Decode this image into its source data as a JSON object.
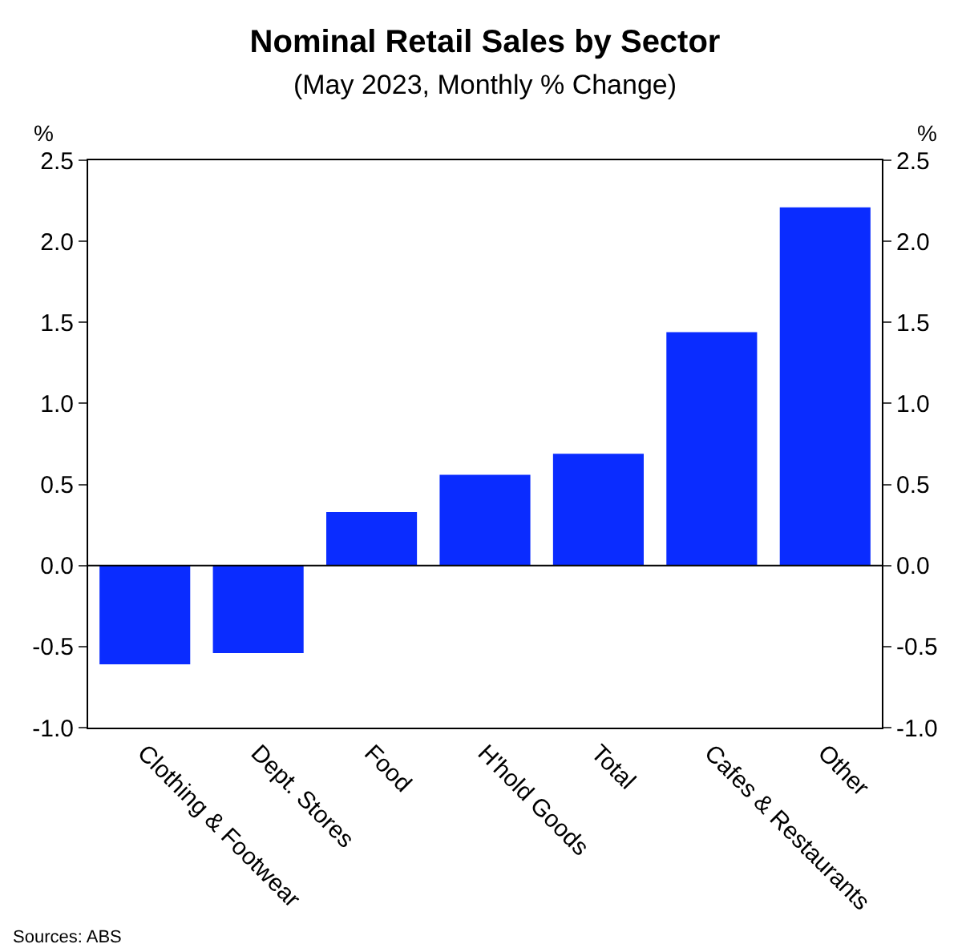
{
  "chart_data": {
    "type": "bar",
    "title": "Nominal Retail Sales by Sector",
    "subtitle": "(May 2023, Monthly % Change)",
    "categories": [
      "Clothing & Footwear",
      "Dept. Stores",
      "Food",
      "H'hold Goods",
      "Total",
      "Cafes & Restaurants",
      "Other"
    ],
    "values": [
      -0.61,
      -0.54,
      0.33,
      0.56,
      0.69,
      1.44,
      2.21
    ],
    "color": "#0a2cff",
    "ylabel": "%",
    "y2label": "%",
    "ylim": [
      -1.0,
      2.5
    ],
    "yticks": [
      {
        "value": -1.0,
        "label": "-1.0"
      },
      {
        "value": -0.5,
        "label": "-0.5"
      },
      {
        "value": 0.0,
        "label": "0.0"
      },
      {
        "value": 0.5,
        "label": "0.5"
      },
      {
        "value": 1.0,
        "label": "1.0"
      },
      {
        "value": 1.5,
        "label": "1.5"
      },
      {
        "value": 2.0,
        "label": "2.0"
      },
      {
        "value": 2.5,
        "label": "2.5"
      }
    ],
    "y2lim": [
      -1.0,
      2.5
    ],
    "y2ticks": [
      {
        "value": -1.0,
        "label": "-1.0"
      },
      {
        "value": -0.5,
        "label": "-0.5"
      },
      {
        "value": 0.0,
        "label": "0.0"
      },
      {
        "value": 0.5,
        "label": "0.5"
      },
      {
        "value": 1.0,
        "label": "1.0"
      },
      {
        "value": 1.5,
        "label": "1.5"
      },
      {
        "value": 2.0,
        "label": "2.0"
      },
      {
        "value": 2.5,
        "label": "2.5"
      }
    ],
    "ref_lines": [
      {
        "axis": "y",
        "value": 0,
        "color": "#000000"
      }
    ],
    "annotations": [
      "Sources: ABS"
    ]
  }
}
